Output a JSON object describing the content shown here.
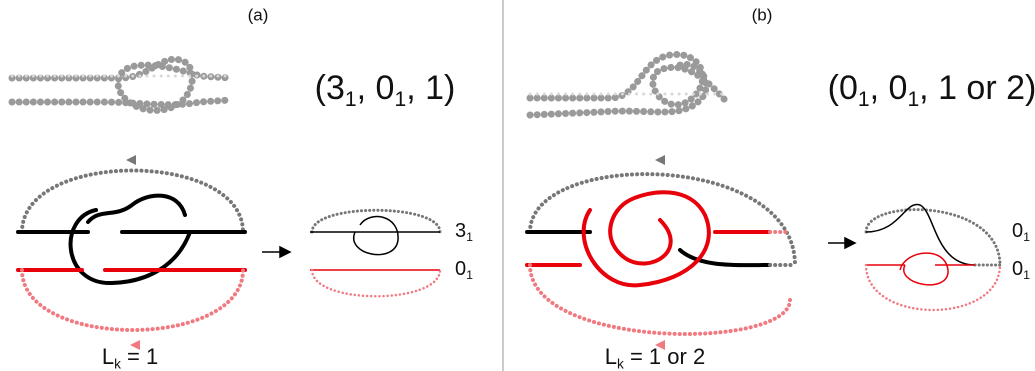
{
  "panels": [
    {
      "label": "(a)",
      "tuple": [
        {
          "text": "(3",
          "sub": "1"
        },
        {
          "text": ", 0",
          "sub": "1"
        },
        {
          "text": ", 1)"
        }
      ],
      "knot_labels": [
        {
          "text": "3",
          "sub": "1"
        },
        {
          "text": "0",
          "sub": "1"
        }
      ],
      "linking": {
        "text": "L",
        "sub": "k",
        "rest": " = 1"
      }
    },
    {
      "label": "(b)",
      "tuple": [
        {
          "text": "(0",
          "sub": "1"
        },
        {
          "text": ", 0",
          "sub": "1"
        },
        {
          "text": ", 1 or 2)"
        }
      ],
      "knot_labels": [
        {
          "text": "0",
          "sub": "1"
        },
        {
          "text": "0",
          "sub": "1"
        }
      ],
      "linking": {
        "text": "L",
        "sub": "k",
        "rest": " = 1 or 2"
      }
    }
  ]
}
